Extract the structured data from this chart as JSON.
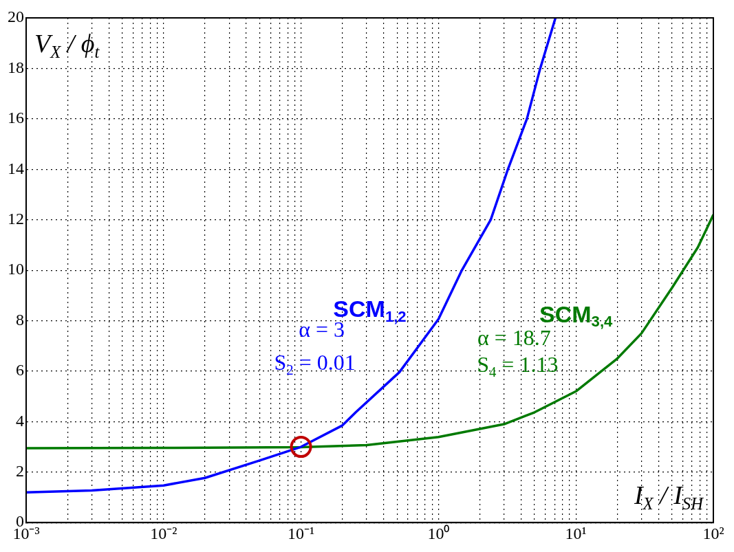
{
  "chart_data": {
    "type": "line",
    "xlabel": "I$_{X}$ / I$_{SH}$",
    "ylabel": "V$_{X}$ / ϕ$_{t}$",
    "log": "x",
    "xlim": [
      0.001,
      100
    ],
    "ylim": [
      0,
      20
    ],
    "xticks": [
      {
        "value": 0.001,
        "label": "10⁻³"
      },
      {
        "value": 0.002,
        "label": null
      },
      {
        "value": 0.003,
        "label": null
      },
      {
        "value": 0.004,
        "label": null
      },
      {
        "value": 0.005,
        "label": null
      },
      {
        "value": 0.006,
        "label": null
      },
      {
        "value": 0.007,
        "label": null
      },
      {
        "value": 0.008,
        "label": null
      },
      {
        "value": 0.009,
        "label": null
      },
      {
        "value": 0.01,
        "label": "10⁻²"
      },
      {
        "value": 0.02,
        "label": null
      },
      {
        "value": 0.03,
        "label": null
      },
      {
        "value": 0.04,
        "label": null
      },
      {
        "value": 0.05,
        "label": null
      },
      {
        "value": 0.06,
        "label": null
      },
      {
        "value": 0.07,
        "label": null
      },
      {
        "value": 0.08,
        "label": null
      },
      {
        "value": 0.09,
        "label": null
      },
      {
        "value": 0.1,
        "label": "10⁻¹"
      },
      {
        "value": 0.2,
        "label": null
      },
      {
        "value": 0.3,
        "label": null
      },
      {
        "value": 0.4,
        "label": null
      },
      {
        "value": 0.5,
        "label": null
      },
      {
        "value": 0.6,
        "label": null
      },
      {
        "value": 0.7,
        "label": null
      },
      {
        "value": 0.8,
        "label": null
      },
      {
        "value": 0.9,
        "label": null
      },
      {
        "value": 1,
        "label": "10⁰"
      },
      {
        "value": 2,
        "label": null
      },
      {
        "value": 3,
        "label": null
      },
      {
        "value": 4,
        "label": null
      },
      {
        "value": 5,
        "label": null
      },
      {
        "value": 6,
        "label": null
      },
      {
        "value": 7,
        "label": null
      },
      {
        "value": 8,
        "label": null
      },
      {
        "value": 9,
        "label": null
      },
      {
        "value": 10,
        "label": "10¹"
      },
      {
        "value": 20,
        "label": null
      },
      {
        "value": 30,
        "label": null
      },
      {
        "value": 40,
        "label": null
      },
      {
        "value": 50,
        "label": null
      },
      {
        "value": 60,
        "label": null
      },
      {
        "value": 70,
        "label": null
      },
      {
        "value": 80,
        "label": null
      },
      {
        "value": 90,
        "label": null
      },
      {
        "value": 100,
        "label": "10²"
      }
    ],
    "yticks": [
      0,
      2,
      4,
      6,
      8,
      10,
      12,
      14,
      16,
      18,
      20
    ],
    "grid": true,
    "legend": false,
    "series": [
      {
        "name": "SCM$_{1,2}$",
        "color": "#0000ff",
        "x": [
          0.001,
          0.003,
          0.01,
          0.02,
          0.05,
          0.1,
          0.2,
          0.25,
          0.52,
          1,
          1.48,
          2.4,
          3.2,
          4.4,
          5.5,
          7.1
        ],
        "values": [
          1.2,
          1.27,
          1.47,
          1.77,
          2.46,
          3,
          3.85,
          4.37,
          5.96,
          8.06,
          10,
          12,
          14,
          16,
          18,
          20
        ]
      },
      {
        "name": "SCM$_{3,4}$",
        "color": "#007a00",
        "x": [
          0.001,
          0.01,
          0.1,
          0.3,
          1,
          3,
          5,
          10,
          20,
          30,
          50,
          77,
          100
        ],
        "values": [
          2.95,
          2.96,
          2.99,
          3.07,
          3.39,
          3.9,
          4.37,
          5.2,
          6.5,
          7.5,
          9.3,
          10.9,
          12.2
        ]
      },
      {
        "type": "scatter",
        "color": "#c00000",
        "marker": "circle",
        "x": [
          0.1
        ],
        "values": [
          3
        ]
      }
    ],
    "annotations": [
      "α = 3",
      "S$_{2}$ = 0.01",
      "α = 18.7",
      "S$_{4}$ = 1.13"
    ]
  }
}
